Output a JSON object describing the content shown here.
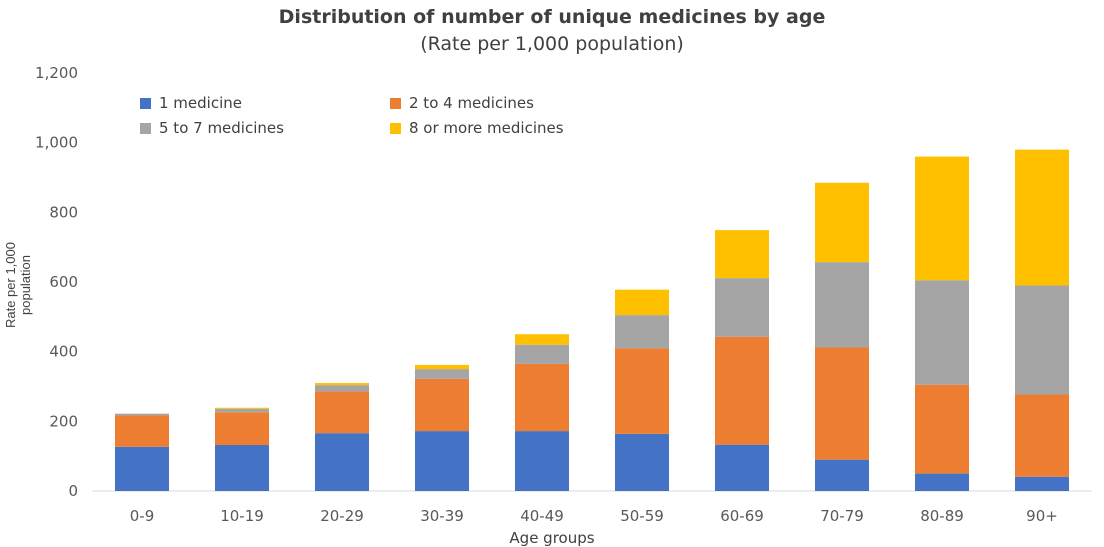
{
  "chart_data": {
    "type": "bar",
    "stacked": true,
    "title": "Distribution of number of unique medicines by age",
    "subtitle": "(Rate per 1,000 population)",
    "xlabel": "Age groups",
    "ylabel": "Rate per 1,000 population",
    "ylim": [
      0,
      1200
    ],
    "yticks": [
      0,
      200,
      400,
      600,
      800,
      1000,
      1200
    ],
    "ytick_labels": [
      "0",
      "200",
      "400",
      "600",
      "800",
      "1,000",
      "1,200"
    ],
    "grid": false,
    "legend_position": "top-left",
    "categories": [
      "0-9",
      "10-19",
      "20-29",
      "30-39",
      "40-49",
      "50-59",
      "60-69",
      "70-79",
      "80-89",
      "90+"
    ],
    "series": [
      {
        "name": "1 medicine",
        "color": "#4472C4",
        "values": [
          127,
          132,
          166,
          172,
          172,
          164,
          133,
          90,
          50,
          41
        ]
      },
      {
        "name": "2 to 4 medicines",
        "color": "#ED7D31",
        "values": [
          90,
          94,
          120,
          150,
          193,
          246,
          310,
          322,
          255,
          236
        ]
      },
      {
        "name": "5 to 7 medicines",
        "color": "#A5A5A5",
        "values": [
          5,
          10,
          18,
          28,
          55,
          95,
          168,
          245,
          300,
          313
        ]
      },
      {
        "name": "8 or more medicines",
        "color": "#FFC000",
        "values": [
          0,
          3,
          6,
          12,
          30,
          73,
          138,
          228,
          355,
          390
        ]
      }
    ]
  }
}
